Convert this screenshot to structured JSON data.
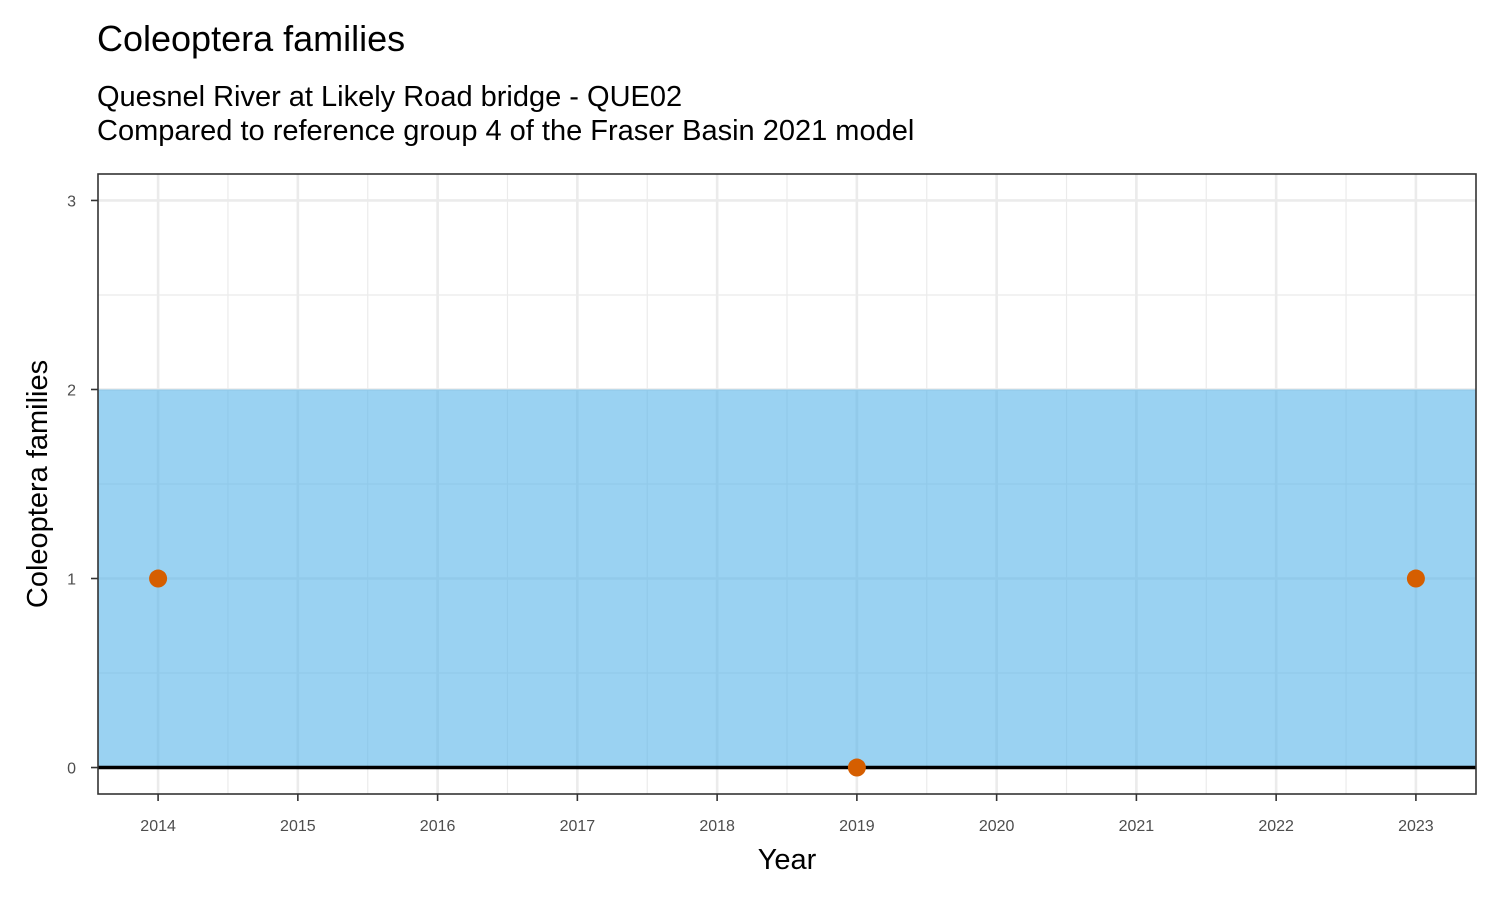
{
  "chart_data": {
    "type": "scatter",
    "title": "Coleoptera families",
    "subtitle_lines": [
      "Quesnel River at Likely Road bridge - QUE02",
      "Compared to reference group 4 of the Fraser Basin 2021 model"
    ],
    "xlabel": "Year",
    "ylabel": "Coleoptera families",
    "x_ticks": [
      2014,
      2015,
      2016,
      2017,
      2018,
      2019,
      2020,
      2021,
      2022,
      2023
    ],
    "y_ticks": [
      0,
      1,
      2,
      3
    ],
    "xlim": [
      2013.57,
      2023.43
    ],
    "ylim": [
      -0.14,
      3.14
    ],
    "grid": true,
    "reference_band": {
      "ymin": 0,
      "ymax": 2,
      "color": "#56B4E9"
    },
    "zero_line": {
      "y": 0,
      "color": "#000000"
    },
    "points": {
      "color": "#D55E00",
      "x": [
        2014,
        2019,
        2023
      ],
      "y": [
        1,
        0,
        1
      ]
    }
  }
}
